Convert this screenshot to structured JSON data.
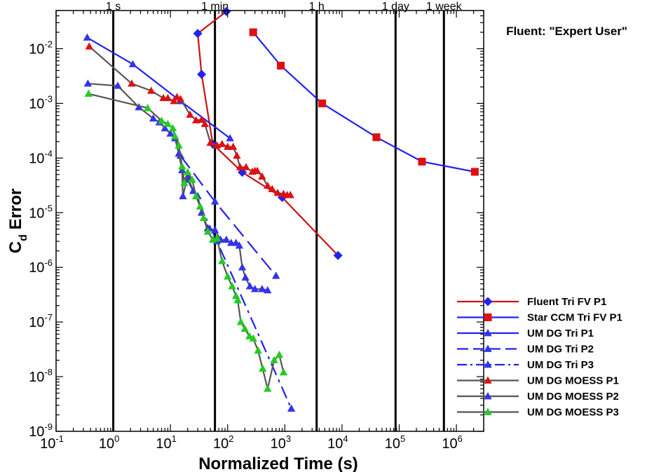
{
  "chart_data": {
    "type": "line",
    "title": "Fluent: \"Expert User\"",
    "xlabel": "Normalized Time (s)",
    "ylabel": {
      "main": "C",
      "sub": "d",
      "rest": " Error"
    },
    "x_scale": "log",
    "y_scale": "log",
    "xlim": [
      0.1,
      3000000
    ],
    "ylim": [
      1e-09,
      0.05
    ],
    "x_decades": [
      -1,
      0,
      1,
      2,
      3,
      4,
      5,
      6
    ],
    "y_decades": [
      -9,
      -8,
      -7,
      -6,
      -5,
      -4,
      -3,
      -2
    ],
    "tick_base": "10",
    "grid": false,
    "legend_position": "bottom-right",
    "reference_lines": [
      {
        "x": 1,
        "label": "1 s"
      },
      {
        "x": 60,
        "label": "1 min"
      },
      {
        "x": 3600,
        "label": "1 h"
      },
      {
        "x": 86400,
        "label": "1 day"
      },
      {
        "x": 604800,
        "label": "1 week"
      }
    ],
    "series": [
      {
        "name": "Fluent Tri FV P1",
        "color": "#cc1111",
        "marker_color": "#2222ee",
        "marker": "diamond",
        "dash": "solid",
        "x": [
          95,
          30,
          35,
          55,
          180,
          900,
          8500
        ],
        "y": [
          0.048,
          0.019,
          0.0034,
          0.00018,
          5.5e-05,
          1.9e-05,
          1.65e-06
        ]
      },
      {
        "name": "Star CCM Tri FV P1",
        "color": "#2222ee",
        "marker_color": "#dd1111",
        "marker": "square",
        "dash": "solid",
        "x": [
          280,
          850,
          4500,
          40000,
          250000,
          2100000
        ],
        "y": [
          0.02,
          0.0049,
          0.001,
          0.00024,
          8.6e-05,
          5.6e-05
        ]
      },
      {
        "name": "UM DG Tri P1",
        "color": "#2222ee",
        "marker_color": "#3333ee",
        "marker": "triangle",
        "dash": "solid",
        "x": [
          0.35,
          2.2,
          15,
          110
        ],
        "y": [
          0.016,
          0.0052,
          0.0011,
          0.00023
        ]
      },
      {
        "name": "UM DG Tri P2",
        "color": "#2222ee",
        "marker_color": "#3333ee",
        "marker": "triangle",
        "dash": "dashed",
        "x": [
          15,
          60,
          700
        ],
        "y": [
          0.00011,
          1.6e-05,
          7e-07
        ]
      },
      {
        "name": "UM DG Tri P3",
        "color": "#2222ee",
        "marker_color": "#3333ee",
        "marker": "triangle",
        "dash": "dashdot",
        "x": [
          20,
          65,
          1300
        ],
        "y": [
          4e-05,
          3e-06,
          2.6e-09
        ]
      },
      {
        "name": "UM DG MOESS P1",
        "color": "#555555",
        "marker_color": "#dd1111",
        "marker": "triangle",
        "dash": "solid",
        "x": [
          0.38,
          2.1,
          4.6,
          7.5,
          9,
          11.5,
          13,
          15,
          22,
          28,
          35,
          40,
          50,
          65,
          80,
          100,
          125,
          145,
          165,
          210,
          270,
          300,
          330,
          400,
          500,
          600,
          750,
          950,
          1100,
          1250
        ],
        "y": [
          0.011,
          0.0023,
          0.0017,
          0.00125,
          0.00125,
          0.0011,
          0.0013,
          0.0012,
          0.00062,
          0.00049,
          0.0005,
          0.00042,
          0.00019,
          0.00017,
          0.00018,
          0.00016,
          0.00016,
          0.00011,
          6.8e-05,
          6.8e-05,
          5.6e-05,
          5.8e-05,
          5.8e-05,
          4.6e-05,
          3.1e-05,
          2.7e-05,
          2.3e-05,
          2.2e-05,
          2.1e-05,
          2.1e-05
        ]
      },
      {
        "name": "UM DG MOESS P2",
        "color": "#555555",
        "marker_color": "#3333ee",
        "marker": "triangle",
        "dash": "solid",
        "x": [
          0.36,
          1.2,
          2.8,
          5,
          6.4,
          8,
          10,
          12,
          14,
          16,
          16.5,
          20,
          25,
          30,
          35,
          45,
          60,
          75,
          95,
          115,
          140,
          160,
          180,
          205,
          245,
          300,
          400,
          500
        ],
        "y": [
          0.0023,
          0.0021,
          0.00085,
          0.00053,
          0.00045,
          0.00035,
          0.00028,
          0.00023,
          0.00012,
          6e-05,
          2e-05,
          4.6e-05,
          2.5e-05,
          2e-05,
          1e-05,
          5.2e-06,
          4.8e-06,
          3.2e-06,
          3.2e-06,
          2.8e-06,
          2.8e-06,
          2.5e-06,
          1e-06,
          6.5e-07,
          4.5e-07,
          4e-07,
          4e-07,
          3.8e-07
        ]
      },
      {
        "name": "UM DG MOESS P3",
        "color": "#555555",
        "marker_color": "#22cc22",
        "marker": "triangle",
        "dash": "solid",
        "x": [
          0.37,
          4,
          7,
          9,
          11,
          12,
          14,
          16,
          17.5,
          20,
          24,
          28,
          33,
          38,
          45,
          55,
          65,
          80,
          100,
          120,
          140,
          150,
          170,
          200,
          240,
          280,
          340,
          410,
          500,
          650,
          800,
          950
        ],
        "y": [
          0.0015,
          0.00082,
          0.00048,
          0.00042,
          0.00035,
          0.00025,
          0.00017,
          7e-05,
          3.5e-05,
          5.5e-05,
          4e-05,
          2e-05,
          1.3e-05,
          8e-06,
          4.5e-06,
          3.2e-06,
          3.4e-06,
          1.3e-06,
          6.8e-07,
          4.5e-07,
          3e-07,
          2.5e-07,
          1e-07,
          7.5e-08,
          5.5e-08,
          5e-08,
          3e-08,
          1.4e-08,
          6e-09,
          2e-08,
          2.5e-08,
          1.2e-08
        ]
      }
    ]
  }
}
